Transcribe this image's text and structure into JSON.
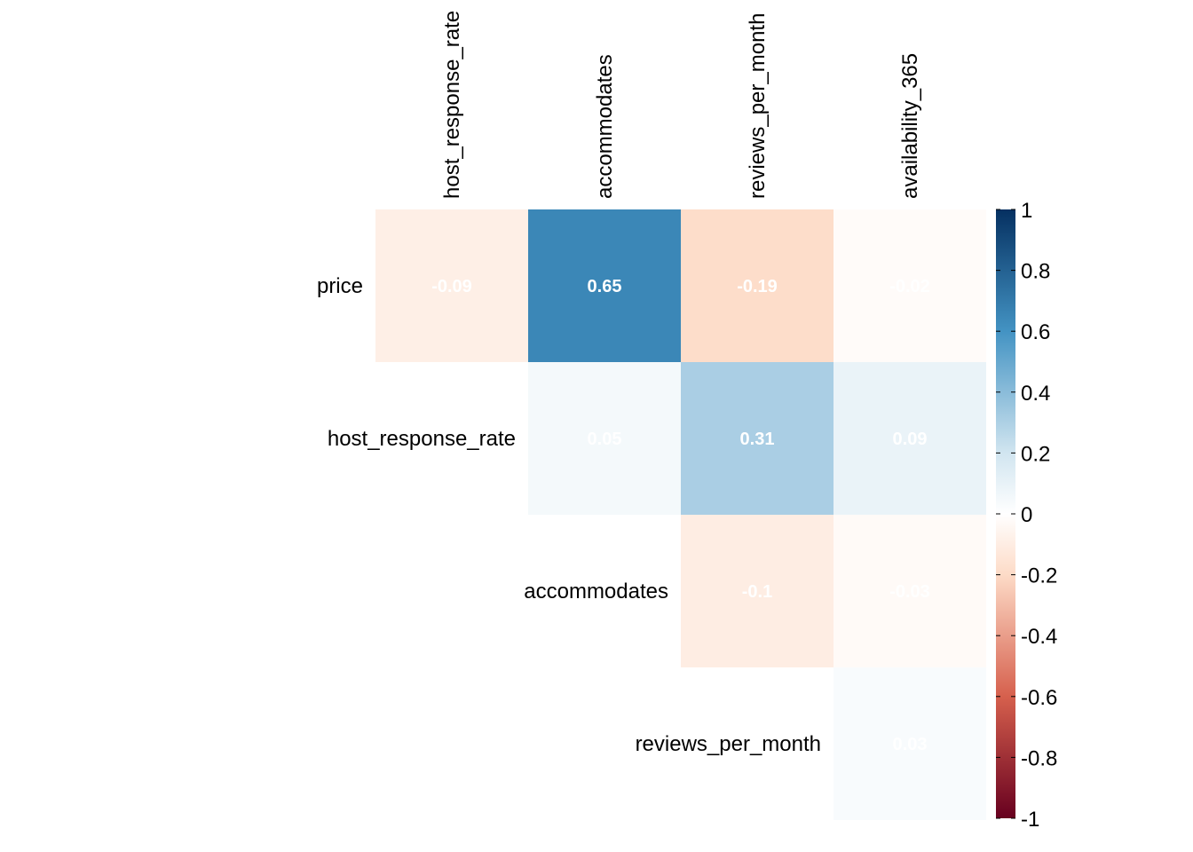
{
  "chart_data": {
    "type": "heatmap",
    "title": "",
    "row_labels": [
      "price",
      "host_response_rate",
      "accommodates",
      "reviews_per_month"
    ],
    "column_labels": [
      "host_response_rate",
      "accommodates",
      "reviews_per_month",
      "availability_365"
    ],
    "shape": "upper-triangle",
    "cells": [
      {
        "row": "price",
        "col": "host_response_rate",
        "value": -0.09,
        "label": "-0.09"
      },
      {
        "row": "price",
        "col": "accommodates",
        "value": 0.65,
        "label": "0.65"
      },
      {
        "row": "price",
        "col": "reviews_per_month",
        "value": -0.19,
        "label": "-0.19"
      },
      {
        "row": "price",
        "col": "availability_365",
        "value": -0.02,
        "label": "-0.02"
      },
      {
        "row": "host_response_rate",
        "col": "accommodates",
        "value": 0.05,
        "label": "0.05"
      },
      {
        "row": "host_response_rate",
        "col": "reviews_per_month",
        "value": 0.31,
        "label": "0.31"
      },
      {
        "row": "host_response_rate",
        "col": "availability_365",
        "value": 0.09,
        "label": "0.09"
      },
      {
        "row": "accommodates",
        "col": "reviews_per_month",
        "value": -0.1,
        "label": "-0.1"
      },
      {
        "row": "accommodates",
        "col": "availability_365",
        "value": -0.03,
        "label": "-0.03"
      },
      {
        "row": "reviews_per_month",
        "col": "availability_365",
        "value": 0.03,
        "label": "0.03"
      }
    ],
    "colorbar": {
      "range": [
        -1,
        1
      ],
      "ticks": [
        1,
        0.8,
        0.6,
        0.4,
        0.2,
        0,
        -0.2,
        -0.4,
        -0.6,
        -0.8,
        -1
      ],
      "tick_labels": [
        "1",
        "0.8",
        "0.6",
        "0.4",
        "0.2",
        "0",
        "-0.2",
        "-0.4",
        "-0.6",
        "-0.8",
        "-1"
      ],
      "position": "right",
      "colors": {
        "neg_1": "#67001F",
        "neg_06": "#D6604D",
        "neg_02": "#FDDBC7",
        "zero": "#FFFFFF",
        "pos_02": "#D1E5F0",
        "pos_06": "#4393C3",
        "pos_1": "#053061"
      }
    },
    "grid": false
  }
}
